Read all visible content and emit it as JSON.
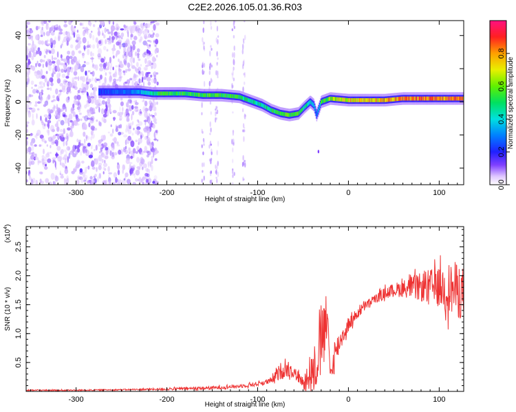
{
  "title": "C2E2.2026.105.01.36.R03",
  "chart_data": [
    {
      "type": "heatmap",
      "xlabel": "Height of straight line (km)",
      "ylabel": "Frequency (Hz)",
      "xlim": [
        -355,
        127
      ],
      "ylim": [
        -50,
        49
      ],
      "x_ticks": [
        -300,
        -200,
        -100,
        0,
        100
      ],
      "y_ticks": [
        -40,
        -20,
        0,
        20,
        40
      ],
      "colorbar": {
        "label": "Normalized spectral amplitude",
        "range": [
          0,
          1
        ],
        "ticks": [
          "0.0",
          "0.2",
          "0.4",
          "0.6",
          "0.8"
        ],
        "tick_values": [
          0,
          0.2,
          0.4,
          0.6,
          0.8
        ]
      },
      "ridge": {
        "x": [
          -270,
          -250,
          -230,
          -215,
          -200,
          -180,
          -160,
          -140,
          -120,
          -105,
          -95,
          -85,
          -75,
          -65,
          -55,
          -48,
          -42,
          -38,
          -35,
          -30,
          -20,
          0,
          20,
          40,
          60,
          80,
          100,
          120,
          127
        ],
        "frequency": [
          6,
          6,
          6,
          5,
          5,
          5,
          4,
          4,
          3,
          0,
          -2,
          -5,
          -7,
          -8,
          -7,
          -3,
          0,
          -2,
          -8,
          0,
          2,
          1,
          1,
          1,
          2,
          2,
          2,
          2,
          2
        ],
        "amplitude": [
          0.25,
          0.3,
          0.35,
          0.55,
          0.6,
          0.6,
          0.62,
          0.6,
          0.55,
          0.5,
          0.5,
          0.55,
          0.6,
          0.65,
          0.6,
          0.5,
          0.45,
          0.4,
          0.3,
          0.55,
          0.7,
          0.8,
          0.82,
          0.85,
          0.9,
          0.92,
          0.95,
          0.93,
          0.9
        ]
      }
    },
    {
      "type": "line",
      "xlabel": "Height of straight line (km)",
      "ylabel": "SNR (10 * v/v)",
      "y_scale_label": "(x10",
      "y_scale_exponent": "4",
      "y_scale_close": ")",
      "xlim": [
        -355,
        127
      ],
      "ylim": [
        0,
        2.85
      ],
      "x_ticks": [
        -300,
        -200,
        -100,
        0,
        100
      ],
      "y_ticks": [
        0.5,
        1.0,
        1.5,
        2.0,
        2.5
      ],
      "color": "#ee3333",
      "series": [
        {
          "x": [
            -355,
            -300,
            -250,
            -200,
            -150,
            -120,
            -100,
            -85,
            -75,
            -65,
            -58,
            -50,
            -45,
            -40,
            -35,
            -30,
            -27,
            -25,
            -22,
            -20,
            -15,
            -10,
            -5,
            0,
            10,
            20,
            30,
            40,
            50,
            60,
            70,
            80,
            90,
            100,
            110,
            120,
            127
          ],
          "values": [
            0.02,
            0.02,
            0.03,
            0.04,
            0.06,
            0.09,
            0.13,
            0.18,
            0.35,
            0.4,
            0.3,
            0.15,
            0.25,
            0.35,
            0.5,
            0.85,
            1.1,
            1.2,
            0.9,
            0.3,
            0.6,
            0.85,
            1.0,
            1.15,
            1.35,
            1.5,
            1.6,
            1.7,
            1.75,
            1.78,
            1.8,
            1.8,
            1.82,
            1.8,
            1.78,
            1.75,
            1.7
          ],
          "noise_amplitude": [
            0.01,
            0.01,
            0.01,
            0.02,
            0.03,
            0.03,
            0.04,
            0.05,
            0.15,
            0.15,
            0.1,
            0.1,
            0.3,
            0.35,
            0.45,
            0.5,
            0.55,
            0.5,
            0.35,
            0.05,
            0.3,
            0.2,
            0.15,
            0.12,
            0.1,
            0.08,
            0.08,
            0.1,
            0.12,
            0.15,
            0.2,
            0.25,
            0.3,
            0.35,
            0.45,
            0.5,
            0.45
          ]
        }
      ]
    }
  ],
  "colors": {
    "speckle_light": "#d8b8f8",
    "speckle_dark": "#6010e0",
    "line": "#ee3333",
    "axes": "#000000"
  }
}
